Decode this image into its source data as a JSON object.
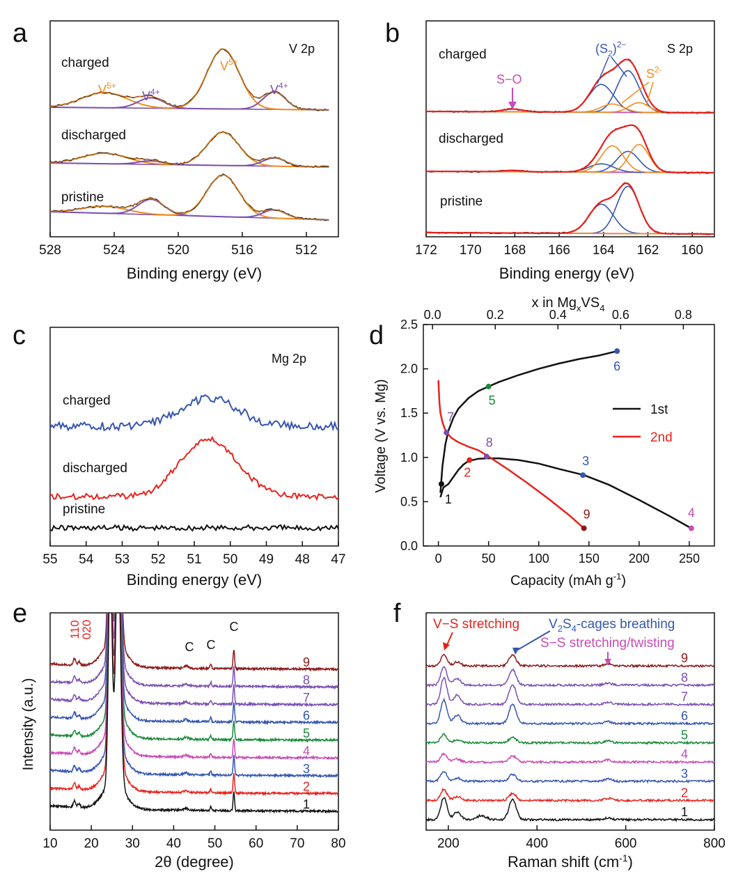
{
  "panel_letters": [
    "a",
    "b",
    "c",
    "d",
    "e",
    "f"
  ],
  "colors": {
    "black": "#111111",
    "orange": "#f08c1e",
    "purple": "#7b4fb0",
    "blue": "#3556b0",
    "red": "#e8221c",
    "magenta": "#c84bb4",
    "green": "#1a8a3a",
    "darkred": "#8b1a1a"
  },
  "chart_data": [
    {
      "id": "a",
      "type": "line",
      "title": "V 2p",
      "xlabel": "Binding energy (eV)",
      "xlim": [
        528,
        510
      ],
      "xticks": [
        528,
        524,
        520,
        516,
        512
      ],
      "traces": [
        "pristine",
        "discharged",
        "charged"
      ],
      "labels": {
        "v5_left": "V",
        "v4_left": "V",
        "v5_main": "V",
        "v4_right": "V",
        "sup5": "5+",
        "sup4": "4+"
      },
      "peaks_eV": {
        "V5+_2p1/2": 524.6,
        "V4+_2p1/2": 521.7,
        "V5+_2p3/2": 517.2,
        "V4+_2p3/2": 514.0
      }
    },
    {
      "id": "b",
      "type": "line",
      "title": "S 2p",
      "xlabel": "Binding energy (eV)",
      "xlim": [
        172,
        159
      ],
      "xticks": [
        172,
        170,
        168,
        166,
        164,
        162,
        160
      ],
      "traces": [
        "pristine",
        "discharged",
        "charged"
      ],
      "labels": {
        "so": "S−O",
        "s2_open": "(S",
        "s2_sub": "2",
        "s2_close": ")",
        "s2_sup": "2−",
        "sulfide": "S",
        "sulfide_sup": "2-"
      },
      "peaks_eV": {
        "S-O": 168.1,
        "(S2)2-_2p1/2": 164.1,
        "(S2)2-_2p3/2": 162.9,
        "S2-_2p1/2": 163.6,
        "S2-_2p3/2": 162.4
      }
    },
    {
      "id": "c",
      "type": "line",
      "title": "Mg 2p",
      "xlabel": "Binding energy (eV)",
      "xlim": [
        55,
        47
      ],
      "xticks": [
        55,
        54,
        53,
        52,
        51,
        50,
        49,
        48,
        47
      ],
      "traces": [
        "pristine",
        "discharged",
        "charged"
      ],
      "peak_eV": 50.5
    },
    {
      "id": "d",
      "type": "line",
      "xlabel": "Capacity (mAh g",
      "xlabel_sup": "-1",
      "xlabel_end": ")",
      "ylabel": "Voltage (V vs. Mg)",
      "toplabel": "x in Mg",
      "toplabel_sub1": "x",
      "toplabel_mid": "VS",
      "toplabel_sub2": "4",
      "xlim": [
        -15,
        275
      ],
      "ylim": [
        0.0,
        2.5
      ],
      "xticks": [
        0,
        50,
        100,
        150,
        200,
        250
      ],
      "yticks": [
        0.0,
        0.5,
        1.0,
        1.5,
        2.0,
        2.5
      ],
      "top_xlim": [
        -0.0293,
        0.899
      ],
      "top_ticks": [
        0.0,
        0.2,
        0.4,
        0.6,
        0.8
      ],
      "series": [
        {
          "name": "1st",
          "color": "#111111",
          "discharge": {
            "x": [
              2,
              5,
              10,
              15,
              20,
              25,
              30,
              40,
              50,
              60,
              80,
              100,
              120,
              145,
              170,
              200,
              230,
              252
            ],
            "y": [
              0.55,
              0.66,
              0.7,
              0.78,
              0.86,
              0.92,
              0.96,
              0.985,
              0.99,
              0.99,
              0.97,
              0.93,
              0.87,
              0.8,
              0.69,
              0.52,
              0.34,
              0.2
            ]
          },
          "charge": {
            "x": [
              2,
              4,
              7,
              10,
              15,
              20,
              30,
              40,
              50,
              60,
              80,
              100,
              120,
              140,
              160,
              178
            ],
            "y": [
              0.6,
              0.9,
              1.15,
              1.3,
              1.45,
              1.55,
              1.67,
              1.75,
              1.8,
              1.85,
              1.93,
              2.0,
              2.06,
              2.11,
              2.15,
              2.2
            ]
          }
        },
        {
          "name": "2nd",
          "color": "#e8221c",
          "curve": {
            "x": [
              0,
              0.5,
              1,
              2,
              4,
              6,
              9,
              13,
              20,
              30,
              40,
              50,
              70,
              90,
              110,
              130,
              145
            ],
            "y": [
              1.87,
              1.75,
              1.62,
              1.5,
              1.4,
              1.33,
              1.27,
              1.22,
              1.17,
              1.12,
              1.08,
              1.01,
              0.86,
              0.7,
              0.53,
              0.35,
              0.2
            ]
          }
        }
      ],
      "points": [
        {
          "label": "1",
          "x": 3,
          "y": 0.7,
          "color": "#111111"
        },
        {
          "label": "2",
          "x": 31,
          "y": 0.97,
          "color": "#e8221c"
        },
        {
          "label": "3",
          "x": 144,
          "y": 0.8,
          "color": "#3556b0"
        },
        {
          "label": "4",
          "x": 252,
          "y": 0.2,
          "color": "#c84bb4"
        },
        {
          "label": "5",
          "x": 50,
          "y": 1.8,
          "color": "#1a8a3a"
        },
        {
          "label": "6",
          "x": 178,
          "y": 2.2,
          "color": "#3556b0"
        },
        {
          "label": "7",
          "x": 8,
          "y": 1.28,
          "color": "#7b4fb0"
        },
        {
          "label": "8",
          "x": 48,
          "y": 1.01,
          "color": "#7b4fb0"
        },
        {
          "label": "9",
          "x": 145,
          "y": 0.2,
          "color": "#8b1a1a"
        }
      ],
      "legend": [
        "1st",
        "2nd"
      ]
    },
    {
      "id": "e",
      "type": "line",
      "xlabel": "2θ (degree)",
      "ylabel": "Intensity (a.u.)",
      "xlim": [
        10,
        80
      ],
      "xticks": [
        10,
        20,
        30,
        40,
        50,
        60,
        70,
        80
      ],
      "traces": [
        "1",
        "2",
        "3",
        "4",
        "5",
        "6",
        "7",
        "8",
        "9"
      ],
      "peak_labels": {
        "p110": "110",
        "p020": "020",
        "c1": "C",
        "c2": "C",
        "c3": "C"
      },
      "peaks_deg": {
        "110": 15.9,
        "020": 17.0,
        "substrate": 26.5,
        "C1": 43.0,
        "C2": 49.0,
        "C3": 54.6
      }
    },
    {
      "id": "f",
      "type": "line",
      "xlabel": "Raman shift (cm",
      "xlabel_sup": "-1",
      "xlabel_end": ")",
      "xlim": [
        150,
        800
      ],
      "xticks": [
        200,
        400,
        600,
        800
      ],
      "traces": [
        "1",
        "2",
        "3",
        "4",
        "5",
        "6",
        "7",
        "8",
        "9"
      ],
      "annotations": {
        "vs": "V−S stretching",
        "cage_a": "V",
        "cage_sub1": "2",
        "cage_b": "S",
        "cage_sub2": "4",
        "cage_c": "-cages breathing",
        "ss": "S−S stretching/twisting"
      },
      "peaks_cm": {
        "V-S": 190,
        "cages": 345,
        "S-S": 560
      }
    }
  ]
}
